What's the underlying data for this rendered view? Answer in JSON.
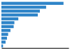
{
  "chart_data": {
    "type": "bar",
    "orientation": "horizontal",
    "categories": [
      null,
      null,
      null,
      null,
      null,
      null,
      null,
      null,
      null,
      null,
      null,
      null
    ],
    "values": [
      268,
      193,
      166,
      157,
      73,
      56,
      53,
      39,
      29,
      24,
      18,
      7
    ],
    "color": "#2e84c8",
    "xlim": [
      0,
      290
    ],
    "tick_labels": false
  }
}
